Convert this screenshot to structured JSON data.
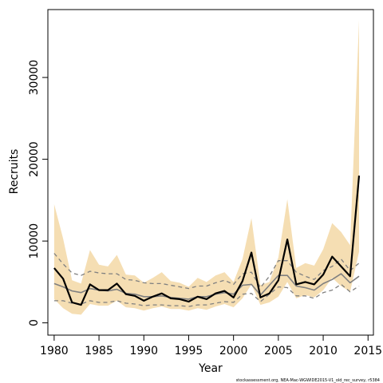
{
  "chart_data": {
    "type": "line",
    "xlabel": "Year",
    "ylabel": "Recruits",
    "footnote": "stockassessment.org, NEA-Mac-WGWIDE2015-V1_old_rec_survey, r5384",
    "xlim": [
      1979.3,
      2015.6
    ],
    "ylim": [
      -1500,
      38300
    ],
    "x_ticks": [
      1980,
      1985,
      1990,
      1995,
      2000,
      2005,
      2010,
      2015
    ],
    "y_ticks": [
      0,
      10000,
      20000,
      30000
    ],
    "grid": false,
    "band_color": "#f5deb3",
    "colors": {
      "main": "#000000",
      "comparison": "#808080"
    },
    "years": [
      1980,
      1981,
      1982,
      1983,
      1984,
      1985,
      1986,
      1987,
      1988,
      1989,
      1990,
      1991,
      1992,
      1993,
      1994,
      1995,
      1996,
      1997,
      1998,
      1999,
      2000,
      2001,
      2002,
      2003,
      2004,
      2005,
      2006,
      2007,
      2008,
      2009,
      2010,
      2011,
      2012,
      2013,
      2014
    ],
    "series": [
      {
        "role": "estimate",
        "values": [
          6700,
          5400,
          2500,
          2200,
          4700,
          4000,
          4000,
          4800,
          3500,
          3300,
          2700,
          3200,
          3600,
          3000,
          2900,
          2600,
          3200,
          2900,
          3600,
          3900,
          3100,
          5100,
          8600,
          3100,
          3600,
          5200,
          10200,
          4700,
          5000,
          4700,
          5900,
          8100,
          6900,
          5700,
          18000
        ]
      },
      {
        "role": "confidence-band",
        "lower": [
          2900,
          1800,
          1100,
          1000,
          2300,
          2100,
          2100,
          2700,
          1900,
          1800,
          1500,
          1800,
          2000,
          1700,
          1700,
          1500,
          1800,
          1600,
          2000,
          2300,
          1900,
          3000,
          4700,
          2200,
          2500,
          3200,
          5000,
          3000,
          3400,
          3100,
          4000,
          5500,
          4500,
          3800,
          8700
        ],
        "upper": [
          14500,
          10300,
          5200,
          4800,
          8900,
          7100,
          6900,
          8300,
          5900,
          5800,
          4900,
          5500,
          6200,
          5100,
          4900,
          4400,
          5500,
          5000,
          5800,
          6200,
          5000,
          7800,
          12800,
          4600,
          5000,
          8000,
          15100,
          6700,
          7300,
          7000,
          9000,
          12200,
          11100,
          9500,
          37000
        ]
      },
      {
        "role": "comparison-estimate",
        "values": [
          4800,
          4400,
          3900,
          3700,
          4200,
          4000,
          3900,
          4100,
          3600,
          3500,
          3200,
          3200,
          3300,
          3100,
          3000,
          2900,
          3200,
          3200,
          3500,
          3700,
          3500,
          4600,
          4700,
          3400,
          4600,
          5800,
          5800,
          4500,
          4300,
          4000,
          4800,
          5300,
          6000,
          4900,
          5700
        ]
      },
      {
        "role": "comparison-lower",
        "values": [
          2700,
          2700,
          2400,
          2300,
          2700,
          2500,
          2500,
          2700,
          2400,
          2300,
          2100,
          2200,
          2200,
          2100,
          2100,
          2000,
          2200,
          2200,
          2400,
          2600,
          2500,
          3500,
          3600,
          2600,
          3500,
          4400,
          4300,
          3300,
          3300,
          3000,
          3700,
          4000,
          4700,
          3800,
          4500
        ]
      },
      {
        "role": "comparison-upper",
        "values": [
          8500,
          7200,
          6100,
          5800,
          6300,
          6100,
          6000,
          6000,
          5300,
          5200,
          4900,
          4800,
          4800,
          4600,
          4400,
          4200,
          4500,
          4500,
          4900,
          5200,
          4700,
          6000,
          6200,
          4300,
          5700,
          7600,
          7600,
          6200,
          5700,
          5300,
          6400,
          6900,
          7800,
          6400,
          7300
        ]
      }
    ]
  }
}
